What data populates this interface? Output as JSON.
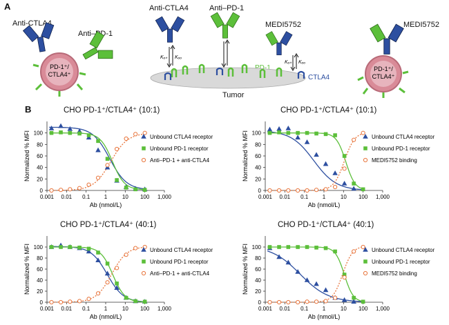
{
  "panel_a": {
    "letter": "A",
    "labels": {
      "anti_ctla4_left": "Anti-CTLA4",
      "anti_pd1_left": "Anti–PD-1",
      "anti_ctla4_mid": "Anti-CTLA4",
      "anti_pd1_mid": "Anti–PD-1",
      "medi_mid": "MEDI5752",
      "medi_right": "MEDI5752",
      "pd1": "PD-1",
      "ctla4": "CTLA4",
      "tumor": "Tumor",
      "kon": "Kₒₙ",
      "koff": "Kₒₒ",
      "cell_line1": "PD-1⁺/",
      "cell_line2": "CTLA4⁺"
    }
  },
  "panel_b": {
    "letter": "B"
  },
  "colors": {
    "ctla4": "#2d4fa0",
    "pd1": "#5cbf3a",
    "combo": "#e8743b",
    "cell": "#d98b98",
    "tumor": "#d9d9d9"
  },
  "chart_data": [
    {
      "type": "scatter",
      "title": "CHO PD-1⁺/CTLA4⁺ (10:1)",
      "xlabel": "Ab (nmol/L)",
      "ylabel": "Normalized % MFI",
      "xscale": "log",
      "xlim": [
        0.001,
        1000
      ],
      "ylim": [
        0,
        120
      ],
      "x_ticks": [
        "0.001",
        "0.01",
        "0.1",
        "1",
        "10",
        "100",
        "1,000"
      ],
      "y_ticks": [
        0,
        20,
        40,
        60,
        80,
        100
      ],
      "legend": "right",
      "series": [
        {
          "name": "Unbound CTLA4 receptor",
          "marker": "triangle",
          "color": "#2d4fa0",
          "x": [
            0.0017,
            0.0051,
            0.015,
            0.046,
            0.137,
            0.41,
            1.23,
            3.7,
            11.1,
            33.3,
            100
          ],
          "y": [
            108,
            112,
            107,
            103,
            92,
            70,
            40,
            17,
            6,
            3,
            2
          ],
          "fit": {
            "top": 110,
            "bottom": 1,
            "ec50": 1.6,
            "hill": 1.0
          }
        },
        {
          "name": "Unbound PD-1 receptor",
          "marker": "square",
          "color": "#5cbf3a",
          "x": [
            0.0017,
            0.0051,
            0.015,
            0.046,
            0.137,
            0.41,
            1.23,
            3.7,
            11.1,
            33.3,
            100
          ],
          "y": [
            100,
            101,
            100,
            99,
            96,
            86,
            55,
            18,
            5,
            2,
            1
          ],
          "fit": {
            "top": 100,
            "bottom": 1,
            "ec50": 2.2,
            "hill": 1.4
          }
        },
        {
          "name": "Anti–PD-1 + anti-CTLA4",
          "marker": "circle-open",
          "color": "#e8743b",
          "dashed": true,
          "x": [
            0.0017,
            0.0051,
            0.015,
            0.046,
            0.137,
            0.41,
            1.23,
            3.7,
            11.1,
            33.3,
            100
          ],
          "y": [
            0,
            1,
            2,
            4,
            10,
            22,
            44,
            72,
            90,
            98,
            100
          ],
          "fit": {
            "top": 100,
            "bottom": 0,
            "ec50": 1.8,
            "hill": 1.0,
            "rising": true
          }
        }
      ]
    },
    {
      "type": "scatter",
      "title": "CHO PD-1⁺/CTLA4⁺ (10:1)",
      "xlabel": "Ab (nmol/L)",
      "ylabel": "Normalized % MFI",
      "xscale": "log",
      "xlim": [
        0.001,
        1000
      ],
      "ylim": [
        0,
        120
      ],
      "x_ticks": [
        "0.001",
        "0.01",
        "0.1",
        "1",
        "10",
        "100",
        "1,000"
      ],
      "y_ticks": [
        0,
        20,
        40,
        60,
        80,
        100
      ],
      "legend": "right",
      "series": [
        {
          "name": "Unbound CTLA4 receptor",
          "marker": "triangle",
          "color": "#2d4fa0",
          "x": [
            0.0017,
            0.0051,
            0.015,
            0.046,
            0.137,
            0.41,
            1.23,
            3.7,
            11.1,
            33.3
          ],
          "y": [
            106,
            107,
            108,
            92,
            84,
            62,
            46,
            30,
            12,
            3
          ],
          "fit": {
            "top": 104,
            "bottom": 0,
            "ec50": 0.3,
            "hill": 0.75
          }
        },
        {
          "name": "Unbound PD-1 receptor",
          "marker": "square",
          "color": "#5cbf3a",
          "x": [
            0.0017,
            0.0051,
            0.015,
            0.046,
            0.137,
            0.41,
            1.23,
            3.7,
            11.1,
            33.3,
            100
          ],
          "y": [
            100,
            101,
            100,
            100,
            100,
            99,
            98,
            96,
            60,
            12,
            2
          ],
          "fit": {
            "top": 100,
            "bottom": 0,
            "ec50": 13,
            "hill": 1.8
          }
        },
        {
          "name": "MEDI5752 binding",
          "marker": "circle-open",
          "color": "#e8743b",
          "dashed": true,
          "x": [
            0.0017,
            0.0051,
            0.015,
            0.046,
            0.137,
            0.41,
            1.23,
            3.7,
            11.1,
            33.3,
            100
          ],
          "y": [
            0,
            0,
            0,
            0,
            0,
            1,
            2,
            6,
            38,
            88,
            100
          ],
          "fit": {
            "top": 102,
            "bottom": 0,
            "ec50": 11,
            "hill": 1.6,
            "rising": true
          }
        }
      ]
    },
    {
      "type": "scatter",
      "title": "CHO PD-1⁺/CTLA4⁺ (40:1)",
      "xlabel": "Ab (nmol/L)",
      "ylabel": "Normalized % MFI",
      "xscale": "log",
      "xlim": [
        0.001,
        1000
      ],
      "ylim": [
        0,
        120
      ],
      "x_ticks": [
        "0.001",
        "0.01",
        "0.1",
        "1",
        "10",
        "100",
        "1,000"
      ],
      "y_ticks": [
        0,
        20,
        40,
        60,
        80,
        100
      ],
      "legend": "right",
      "series": [
        {
          "name": "Unbound CTLA4 receptor",
          "marker": "triangle",
          "color": "#2d4fa0",
          "x": [
            0.0017,
            0.0051,
            0.015,
            0.046,
            0.137,
            0.41,
            1.23,
            3.7,
            11.1,
            33.3,
            100
          ],
          "y": [
            100,
            103,
            100,
            98,
            92,
            76,
            52,
            26,
            8,
            2,
            1
          ],
          "fit": {
            "top": 101,
            "bottom": 0,
            "ec50": 1.2,
            "hill": 1.05
          }
        },
        {
          "name": "Unbound PD-1 receptor",
          "marker": "square",
          "color": "#5cbf3a",
          "x": [
            0.0017,
            0.0051,
            0.015,
            0.046,
            0.137,
            0.41,
            1.23,
            3.7,
            11.1,
            33.3,
            100
          ],
          "y": [
            100,
            100,
            100,
            99,
            97,
            90,
            70,
            34,
            8,
            2,
            1
          ],
          "fit": {
            "top": 100,
            "bottom": 0,
            "ec50": 2.3,
            "hill": 1.4
          }
        },
        {
          "name": "Anti–PD-1 + anti-CTLA4",
          "marker": "circle-open",
          "color": "#e8743b",
          "dashed": true,
          "x": [
            0.0017,
            0.0051,
            0.015,
            0.046,
            0.137,
            0.41,
            1.23,
            3.7,
            11.1,
            33.3,
            100
          ],
          "y": [
            0,
            0,
            1,
            2,
            6,
            16,
            36,
            62,
            86,
            98,
            100
          ],
          "fit": {
            "top": 101,
            "bottom": 0,
            "ec50": 2.0,
            "hill": 1.1,
            "rising": true
          }
        }
      ]
    },
    {
      "type": "scatter",
      "title": "CHO PD-1⁺/CTLA4⁺ (40:1)",
      "xlabel": "Ab (nmol/L)",
      "ylabel": "Normalized % MFI",
      "xscale": "log",
      "xlim": [
        0.001,
        1000
      ],
      "ylim": [
        0,
        120
      ],
      "x_ticks": [
        "0.001",
        "0.01",
        "0.1",
        "1",
        "10",
        "100",
        "1,000"
      ],
      "y_ticks": [
        0,
        20,
        40,
        60,
        80,
        100
      ],
      "legend": "right",
      "series": [
        {
          "name": "Unbound CTLA4 receptor",
          "marker": "triangle",
          "color": "#2d4fa0",
          "x": [
            0.0017,
            0.0051,
            0.015,
            0.046,
            0.137,
            0.41,
            1.23,
            3.7,
            11.1,
            33.3
          ],
          "y": [
            98,
            82,
            72,
            55,
            40,
            33,
            22,
            8,
            4,
            1
          ],
          "fit": {
            "top": 102,
            "bottom": 0,
            "ec50": 0.06,
            "hill": 0.6
          }
        },
        {
          "name": "Unbound PD-1 receptor",
          "marker": "square",
          "color": "#5cbf3a",
          "x": [
            0.0017,
            0.0051,
            0.015,
            0.046,
            0.137,
            0.41,
            1.23,
            3.7,
            11.1,
            33.3,
            100
          ],
          "y": [
            100,
            100,
            100,
            100,
            100,
            99,
            98,
            92,
            50,
            8,
            1
          ],
          "fit": {
            "top": 100,
            "bottom": 0,
            "ec50": 11,
            "hill": 1.9
          }
        },
        {
          "name": "MEDI5752 binding",
          "marker": "circle-open",
          "color": "#e8743b",
          "dashed": true,
          "x": [
            0.0017,
            0.0051,
            0.015,
            0.046,
            0.137,
            0.41,
            1.23,
            3.7,
            11.1,
            33.3,
            100
          ],
          "y": [
            0,
            0,
            0,
            0,
            1,
            1,
            2,
            8,
            45,
            92,
            100
          ],
          "fit": {
            "top": 102,
            "bottom": 0,
            "ec50": 9,
            "hill": 1.7,
            "rising": true
          }
        }
      ]
    }
  ]
}
